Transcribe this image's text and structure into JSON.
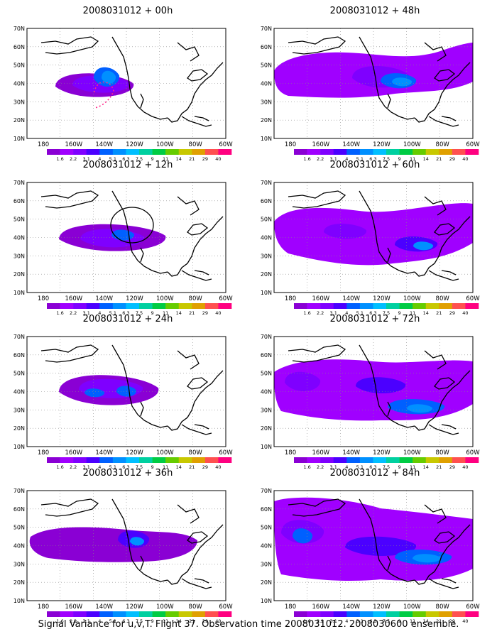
{
  "figure": {
    "caption": "Signal Variance for u,v,T. Flight 37. Observation time 2008031012. 2008030600 ensemble."
  },
  "lat_labels": [
    "70N",
    "60N",
    "50N",
    "40N",
    "30N",
    "20N",
    "10N"
  ],
  "lon_labels": [
    "180",
    "160W",
    "140W",
    "120W",
    "100W",
    "80W",
    "60W"
  ],
  "colorbar": {
    "levels": [
      "1.6",
      "2.2",
      "3.1",
      "4",
      "5.1",
      "6.3",
      "7.5",
      "9",
      "11",
      "14",
      "21",
      "29",
      "40"
    ],
    "colors": [
      "#8a00d4",
      "#a000ff",
      "#7f00ff",
      "#4b00ff",
      "#0060ff",
      "#0090ff",
      "#00bfff",
      "#00d0a0",
      "#00cc44",
      "#66cc00",
      "#c8c800",
      "#e0a000",
      "#ff5050",
      "#ff0080"
    ]
  },
  "panels": [
    {
      "title": "2008031012 + 00h"
    },
    {
      "title": "2008031012 + 48h"
    },
    {
      "title": "2008031012 + 12h"
    },
    {
      "title": "2008031012 + 60h"
    },
    {
      "title": "2008031012 + 24h"
    },
    {
      "title": "2008031012 + 72h"
    },
    {
      "title": "2008031012 + 36h"
    },
    {
      "title": "2008031012 + 84h"
    }
  ]
}
